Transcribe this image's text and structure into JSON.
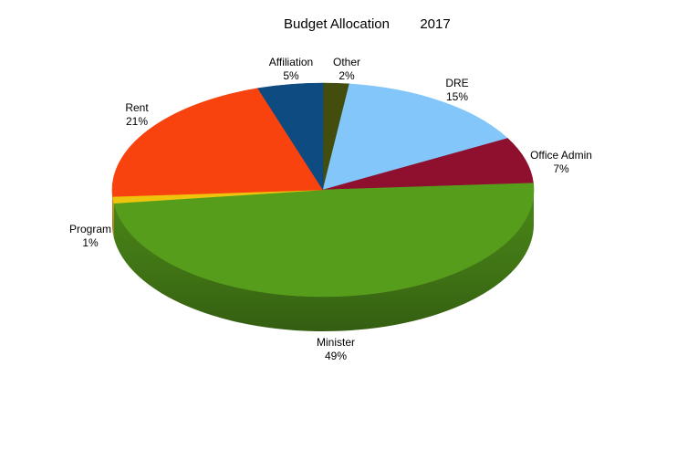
{
  "page": {
    "background": "#ffffff"
  },
  "header": {
    "title": "Budget Allocation",
    "title_year": "2017"
  },
  "chart_data": {
    "type": "pie",
    "style": "3d",
    "title": "Budget Allocation",
    "title_year": "2017",
    "legend": "none",
    "background": "#ffffff",
    "label_color": "#000000",
    "total_percent": 100,
    "slices": [
      {
        "label": "Other",
        "value": 2,
        "color": "#424d0e"
      },
      {
        "label": "DRE",
        "value": 15,
        "color": "#83c6fa"
      },
      {
        "label": "Office Admin",
        "value": 7,
        "color": "#8e0f2e"
      },
      {
        "label": "Minister",
        "value": 49,
        "color": "#579d1c"
      },
      {
        "label": "Program",
        "value": 1,
        "color": "#eec40d"
      },
      {
        "label": "Rent",
        "value": 21,
        "color": "#f9430f"
      },
      {
        "label": "Affiliation",
        "value": 5,
        "color": "#0d4b80"
      }
    ]
  }
}
